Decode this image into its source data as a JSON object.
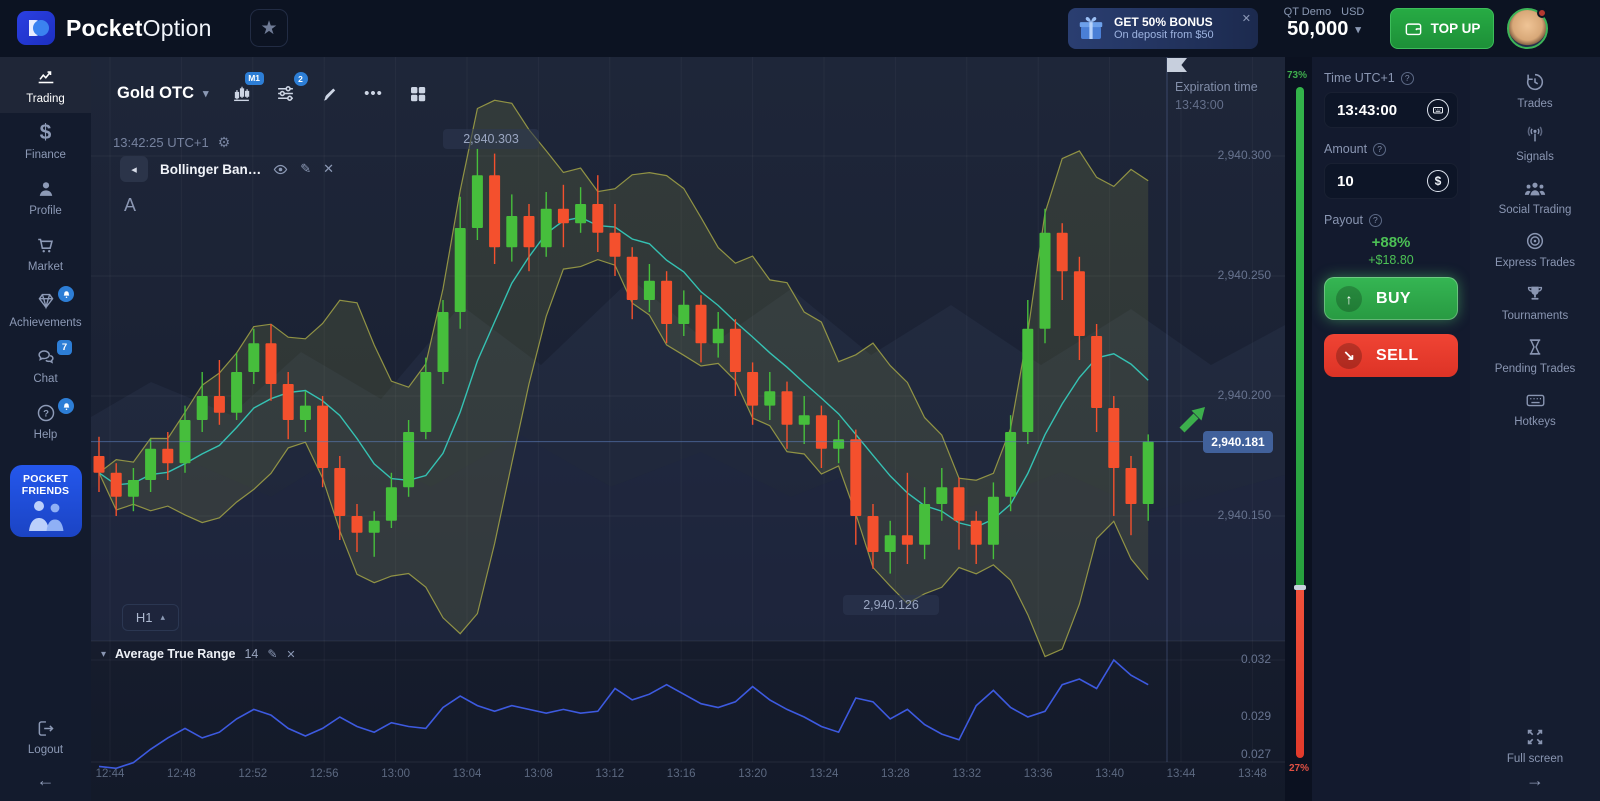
{
  "icons": {
    "star": "★",
    "caret_down": "▾",
    "caret_up": "▴",
    "dots": "⋯",
    "close": "✕",
    "back": "◂",
    "arrow_left": "←",
    "arrow_right": "→",
    "buy_arrow": "↑",
    "sell_arrow": "↘",
    "pencil": "✎",
    "question": "?",
    "gear": "⚙"
  },
  "brand": {
    "bold": "Pocket",
    "light": "Option"
  },
  "topbar": {
    "bonus_title": "GET 50% BONUS",
    "bonus_subtitle": "On deposit from $50",
    "account_type": "QT Demo",
    "account_currency": "USD",
    "balance": "50,000",
    "topup_label": "TOP UP"
  },
  "sidebar_left": {
    "items": [
      {
        "label": "Trading"
      },
      {
        "label": "Finance"
      },
      {
        "label": "Profile"
      },
      {
        "label": "Market"
      },
      {
        "label": "Achievements"
      },
      {
        "label": "Chat",
        "badge": "7"
      },
      {
        "label": "Help"
      }
    ]
  },
  "pocket_friends": {
    "line1": "POCKET",
    "line2": "FRIENDS"
  },
  "logout_label": "Logout",
  "chart": {
    "symbol": "Gold OTC",
    "chart_type_badge": "M1",
    "indicators_badge": "2",
    "clock": "13:42:25 UTC+1",
    "indicator_chip": "Bollinger Ban…",
    "annotation": "A",
    "timeframe": "H1",
    "expiration_label": "Expiration time",
    "expiration_time": "13:43:00",
    "high_label": "2,940.303",
    "low_label": "2,940.126",
    "current_price_label": "2,940.181",
    "price_labels": [
      "2,940.300",
      "2,940.250",
      "2,940.200",
      "2,940.150"
    ],
    "x_ticks": [
      "12:44",
      "12:48",
      "12:52",
      "12:56",
      "13:00",
      "13:04",
      "13:08",
      "13:12",
      "13:16",
      "13:20",
      "13:24",
      "13:28",
      "13:32",
      "13:36",
      "13:40",
      "13:44",
      "13:48"
    ],
    "atr_title": "Average True Range",
    "atr_period": "14",
    "atr_labels": [
      "0.032",
      "0.029",
      "0.027"
    ],
    "sentiment_buy": "73%",
    "sentiment_sell": "27%"
  },
  "trade_panel": {
    "time_label": "Time UTC+1",
    "time_value": "13:43:00",
    "amount_label": "Amount",
    "amount_value": "10",
    "payout_label": "Payout",
    "payout_pct": "+88%",
    "payout_amount": "+$18.80",
    "buy_label": "BUY",
    "sell_label": "SELL"
  },
  "sidebar_right": {
    "items": [
      "Trades",
      "Signals",
      "Social Trading",
      "Express Trades",
      "Tournaments",
      "Pending Trades",
      "Hotkeys"
    ],
    "fullscreen": "Full screen"
  },
  "chart_data": {
    "type": "candlestick",
    "title": "Gold OTC M1 with Bollinger Bands and Average True Range",
    "price_base": 2940,
    "candles_ohlc_milli": [
      [
        175,
        183,
        160,
        168
      ],
      [
        168,
        172,
        150,
        158
      ],
      [
        158,
        170,
        152,
        165
      ],
      [
        165,
        182,
        160,
        178
      ],
      [
        178,
        185,
        165,
        172
      ],
      [
        172,
        196,
        168,
        190
      ],
      [
        190,
        210,
        185,
        200
      ],
      [
        200,
        215,
        188,
        193
      ],
      [
        193,
        218,
        190,
        210
      ],
      [
        210,
        228,
        205,
        222
      ],
      [
        222,
        230,
        198,
        205
      ],
      [
        205,
        210,
        182,
        190
      ],
      [
        190,
        202,
        185,
        196
      ],
      [
        196,
        200,
        162,
        170
      ],
      [
        170,
        175,
        140,
        150
      ],
      [
        150,
        155,
        135,
        143
      ],
      [
        143,
        152,
        133,
        148
      ],
      [
        148,
        168,
        145,
        162
      ],
      [
        162,
        190,
        158,
        185
      ],
      [
        185,
        216,
        182,
        210
      ],
      [
        210,
        240,
        205,
        235
      ],
      [
        235,
        283,
        228,
        270
      ],
      [
        270,
        303,
        265,
        292
      ],
      [
        292,
        301,
        255,
        262
      ],
      [
        262,
        284,
        256,
        275
      ],
      [
        275,
        280,
        252,
        262
      ],
      [
        262,
        285,
        258,
        278
      ],
      [
        278,
        288,
        262,
        272
      ],
      [
        272,
        287,
        268,
        280
      ],
      [
        280,
        292,
        260,
        268
      ],
      [
        268,
        280,
        250,
        258
      ],
      [
        258,
        262,
        232,
        240
      ],
      [
        240,
        255,
        235,
        248
      ],
      [
        248,
        252,
        222,
        230
      ],
      [
        230,
        244,
        225,
        238
      ],
      [
        238,
        242,
        214,
        222
      ],
      [
        222,
        235,
        216,
        228
      ],
      [
        228,
        232,
        200,
        210
      ],
      [
        210,
        214,
        188,
        196
      ],
      [
        196,
        210,
        190,
        202
      ],
      [
        202,
        206,
        178,
        188
      ],
      [
        188,
        200,
        180,
        192
      ],
      [
        192,
        196,
        170,
        178
      ],
      [
        178,
        190,
        172,
        182
      ],
      [
        182,
        186,
        138,
        150
      ],
      [
        150,
        155,
        128,
        135
      ],
      [
        135,
        148,
        126,
        142
      ],
      [
        142,
        168,
        130,
        138
      ],
      [
        138,
        162,
        132,
        155
      ],
      [
        155,
        170,
        148,
        162
      ],
      [
        162,
        166,
        136,
        148
      ],
      [
        148,
        152,
        130,
        138
      ],
      [
        138,
        164,
        132,
        158
      ],
      [
        158,
        192,
        152,
        185
      ],
      [
        185,
        240,
        180,
        228
      ],
      [
        228,
        278,
        222,
        268
      ],
      [
        268,
        272,
        240,
        252
      ],
      [
        252,
        258,
        215,
        225
      ],
      [
        225,
        230,
        185,
        195
      ],
      [
        195,
        200,
        150,
        170
      ],
      [
        170,
        175,
        142,
        155
      ],
      [
        155,
        184,
        148,
        181
      ]
    ],
    "bollinger": {
      "window": 7,
      "mult": 2.1
    },
    "current_price": 2940.181,
    "high_point": 2940.303,
    "low_point": 2940.126,
    "price_ticks": [
      2940.3,
      2940.25,
      2940.2,
      2940.15
    ],
    "atr": {
      "period": 14,
      "values_milli": [
        26.4,
        26.3,
        26.6,
        27.3,
        27.9,
        28.4,
        27.9,
        28.2,
        28.9,
        29.4,
        29.1,
        28.4,
        28.0,
        28.4,
        29.0,
        28.5,
        28.2,
        28.7,
        28.5,
        28.4,
        29.5,
        30.1,
        29.6,
        29.3,
        29.6,
        29.4,
        29.2,
        29.4,
        29.2,
        29.3,
        30.5,
        29.9,
        30.2,
        30.7,
        30.2,
        29.7,
        29.5,
        29.8,
        30.6,
        29.9,
        29.4,
        29.0,
        28.5,
        28.2,
        30.0,
        29.8,
        28.9,
        29.4,
        28.6,
        28.1,
        27.8,
        29.6,
        30.4,
        29.5,
        29.0,
        29.3,
        30.7,
        31.0,
        30.5,
        32.0,
        31.2,
        30.7
      ],
      "y_ticks": [
        0.032,
        0.029,
        0.027
      ]
    },
    "sentiment": {
      "buy": 73,
      "sell": 27
    },
    "expiration_time": "13:43:00",
    "colors": {
      "up": "#46be3c",
      "down": "#f4502d",
      "bollinger_band": "#a3a546",
      "bollinger_mid": "#35d0c0",
      "atr_line": "#3d5ae0",
      "price_line": "#5d7fc0",
      "buy": "#2fae47",
      "sell": "#e8402e",
      "accent_blue": "#2d7ed6"
    }
  }
}
